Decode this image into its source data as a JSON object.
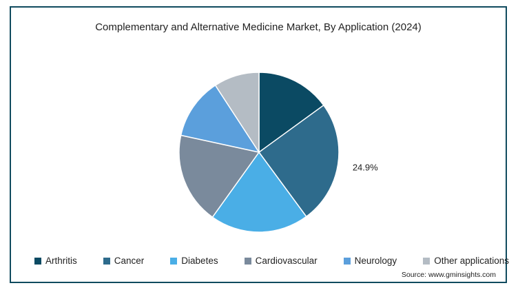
{
  "chart_data": {
    "type": "pie",
    "title": "Complementary and Alternative Medicine Market, By Application (2024)",
    "slices": [
      {
        "name": "Arthritis",
        "value": 15.0,
        "color": "#0b4a63"
      },
      {
        "name": "Cancer",
        "value": 24.9,
        "color": "#2e6b8c"
      },
      {
        "name": "Diabetes",
        "value": 20.0,
        "color": "#4aaee6"
      },
      {
        "name": "Cardiovascular",
        "value": 18.5,
        "color": "#7a8a9c"
      },
      {
        "name": "Neurology",
        "value": 12.4,
        "color": "#5b9fdc"
      },
      {
        "name": "Other applications",
        "value": 9.2,
        "color": "#b4bcc4"
      }
    ],
    "data_labels": [
      {
        "slice": "Cancer",
        "text": "24.9%"
      }
    ],
    "legend_position": "bottom"
  },
  "source": "Source: www.gminsights.com"
}
